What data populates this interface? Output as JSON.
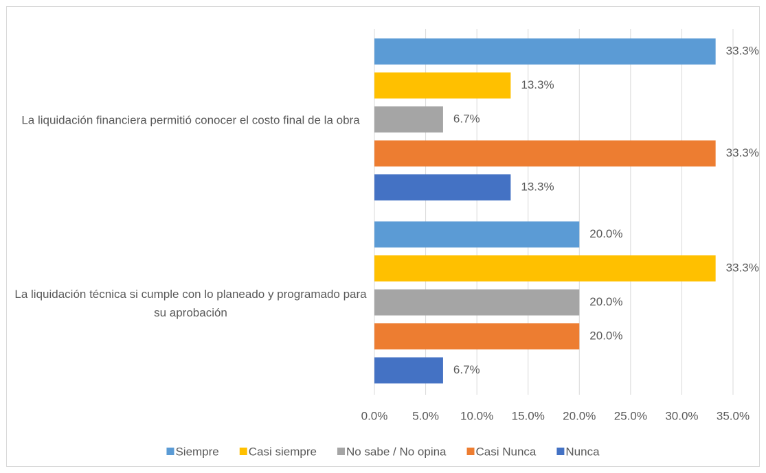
{
  "chart_data": {
    "type": "bar",
    "orientation": "horizontal",
    "categories": [
      "La liquidación financiera permitió conocer  el costo final de la obra",
      "La liquidación técnica si cumple con lo planeado y programado para su aprobación"
    ],
    "series": [
      {
        "name": "Siempre",
        "color": "#5b9bd5",
        "values": [
          33.3,
          20.0
        ],
        "value_labels": [
          "33.3%",
          "20.0%"
        ]
      },
      {
        "name": "Casi siempre",
        "color": "#ffc000",
        "values": [
          13.3,
          33.3
        ],
        "value_labels": [
          "13.3%",
          "33.3%"
        ]
      },
      {
        "name": "No sabe / No opina",
        "color": "#a5a5a5",
        "values": [
          6.7,
          20.0
        ],
        "value_labels": [
          "6.7%",
          "20.0%"
        ]
      },
      {
        "name": "Casi Nunca",
        "color": "#ed7d31",
        "values": [
          33.3,
          20.0
        ],
        "value_labels": [
          "33.3%",
          "20.0%"
        ]
      },
      {
        "name": "Nunca",
        "color": "#4472c4",
        "values": [
          13.3,
          6.7
        ],
        "value_labels": [
          "13.3%",
          "6.7%"
        ]
      }
    ],
    "xlim": [
      0,
      35
    ],
    "xticks": [
      {
        "value": 0,
        "label": "0.0%"
      },
      {
        "value": 5,
        "label": "5.0%"
      },
      {
        "value": 10,
        "label": "10.0%"
      },
      {
        "value": 15,
        "label": "15.0%"
      },
      {
        "value": 20,
        "label": "20.0%"
      },
      {
        "value": 25,
        "label": "25.0%"
      },
      {
        "value": 30,
        "label": "30.0%"
      },
      {
        "value": 35,
        "label": "35.0%"
      }
    ],
    "grid": true,
    "legend": "bottom"
  }
}
